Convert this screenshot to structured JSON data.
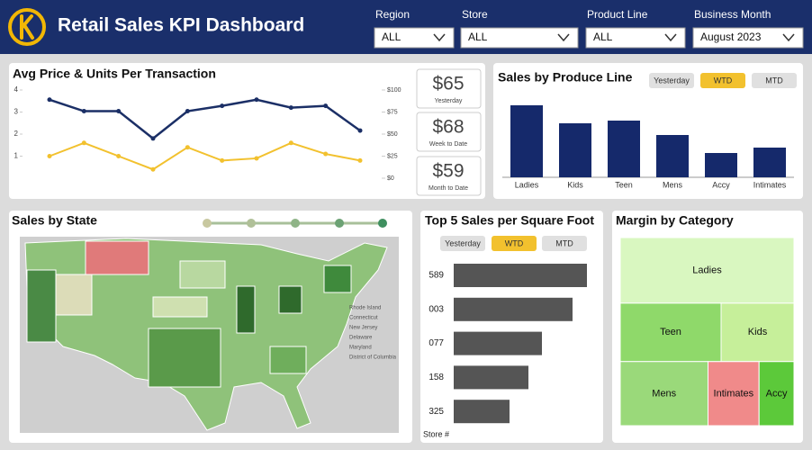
{
  "header": {
    "title": "Retail Sales KPI Dashboard"
  },
  "filters": [
    {
      "label": "Region",
      "value": "ALL"
    },
    {
      "label": "Store",
      "value": "ALL"
    },
    {
      "label": "Product Line",
      "value": "ALL"
    },
    {
      "label": "Business Month",
      "value": "August 2023"
    }
  ],
  "price_units": {
    "chart_data": {
      "type": "line",
      "title": "Avg Price & Units Per Transaction",
      "ylim": [
        0,
        4
      ],
      "yticks": [
        1,
        2,
        3,
        4
      ],
      "y2lim": [
        0,
        100
      ],
      "y2ticks": [
        {
          "value": 100,
          "label": "$100"
        },
        {
          "value": 75,
          "label": "$75"
        },
        {
          "value": 50,
          "label": "$50"
        },
        {
          "value": 25,
          "label": "$25"
        },
        {
          "value": 0,
          "label": "$0"
        }
      ],
      "series": [
        {
          "color": "#1b2f66",
          "axis": "y2",
          "values": [
            89,
            76,
            76,
            45,
            76,
            82,
            89,
            80,
            82,
            54
          ]
        },
        {
          "color": "#f2c12e",
          "values": [
            1.0,
            1.6,
            1.0,
            0.4,
            1.4,
            0.8,
            0.9,
            1.6,
            1.1,
            0.8
          ]
        }
      ]
    },
    "kpis": [
      {
        "value": "$65",
        "caption": "Yesterday"
      },
      {
        "value": "$68",
        "caption": "Week to Date"
      },
      {
        "value": "$59",
        "caption": "Month to Date"
      }
    ]
  },
  "produce_line": {
    "toggles": [
      "Yesterday",
      "WTD",
      "MTD"
    ],
    "active_toggle": 1,
    "chart_data": {
      "type": "bar",
      "title": "Sales by Produce Line",
      "categories": [
        "Ladies",
        "Kids",
        "Teen",
        "Mens",
        "Accy",
        "Intimates"
      ],
      "values": [
        80,
        60,
        63,
        47,
        27,
        33
      ],
      "color": "#15296b"
    }
  },
  "state_map": {
    "title": "Sales by State",
    "map_labels": [
      "Rhode Island",
      "Connecticut",
      "New Jersey",
      "Delaware",
      "Maryland",
      "District of Columbia"
    ]
  },
  "top_stores": {
    "toggles": [
      "Yesterday",
      "WTD",
      "MTD"
    ],
    "active_toggle": 1,
    "chart_data": {
      "type": "hbar",
      "title": "Top 5 Sales per Square Foot",
      "y_label": "Store #",
      "categories": [
        "589",
        "003",
        "077",
        "158",
        "325"
      ],
      "values": [
        148,
        132,
        98,
        83,
        62
      ],
      "color": "#555555"
    }
  },
  "margin": {
    "chart_data": {
      "type": "treemap",
      "title": "Margin by Category",
      "categories": [
        "Ladies",
        "Teen",
        "Kids",
        "Mens",
        "Intimates",
        "Accy"
      ],
      "values": [
        14089,
        7280,
        5265,
        6958,
        4047,
        2769
      ],
      "colors": [
        "#d9f7c0",
        "#8fd96a",
        "#c6ef9a",
        "#9ad97a",
        "#f08a8a",
        "#5cc93a"
      ]
    }
  }
}
